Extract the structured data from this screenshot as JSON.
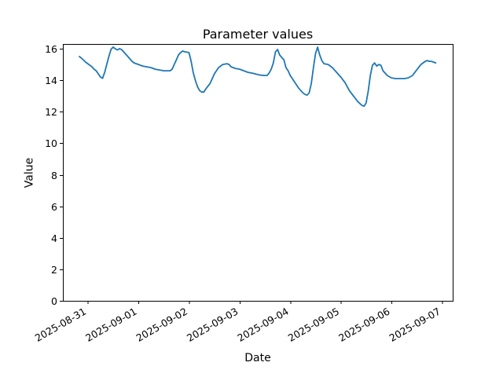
{
  "chart_data": {
    "type": "line",
    "title": "Parameter values",
    "xlabel": "Date",
    "ylabel": "Value",
    "line_color": "#1f77b4",
    "background": "#ffffff",
    "grid": false,
    "legend": "none",
    "ylim": [
      0,
      16.3
    ],
    "xlim": [
      "2025-08-30T12:10",
      "2025-09-07T05:10"
    ],
    "y_ticks": [
      0,
      2,
      4,
      6,
      8,
      10,
      12,
      14,
      16
    ],
    "x_tick_labels": [
      "2025-08-31",
      "2025-09-01",
      "2025-09-02",
      "2025-09-03",
      "2025-09-04",
      "2025-09-05",
      "2025-09-06",
      "2025-09-07"
    ],
    "x": [
      "2025-08-30T20:00",
      "2025-08-30T21:00",
      "2025-08-30T22:00",
      "2025-08-30T23:00",
      "2025-08-31T00:00",
      "2025-08-31T01:00",
      "2025-08-31T02:00",
      "2025-08-31T03:00",
      "2025-08-31T04:00",
      "2025-08-31T05:00",
      "2025-08-31T06:00",
      "2025-08-31T07:00",
      "2025-08-31T08:00",
      "2025-08-31T09:00",
      "2025-08-31T10:00",
      "2025-08-31T11:00",
      "2025-08-31T12:00",
      "2025-08-31T13:00",
      "2025-08-31T14:00",
      "2025-08-31T15:00",
      "2025-08-31T16:00",
      "2025-08-31T17:00",
      "2025-08-31T18:00",
      "2025-08-31T19:00",
      "2025-08-31T20:00",
      "2025-08-31T21:00",
      "2025-08-31T22:00",
      "2025-08-31T23:00",
      "2025-09-01T00:00",
      "2025-09-01T02:00",
      "2025-09-01T04:00",
      "2025-09-01T06:00",
      "2025-09-01T08:00",
      "2025-09-01T10:00",
      "2025-09-01T12:00",
      "2025-09-01T14:00",
      "2025-09-01T15:00",
      "2025-09-01T16:00",
      "2025-09-01T17:00",
      "2025-09-01T18:00",
      "2025-09-01T19:00",
      "2025-09-01T20:00",
      "2025-09-01T21:00",
      "2025-09-01T22:00",
      "2025-09-01T23:00",
      "2025-09-02T00:00",
      "2025-09-02T01:00",
      "2025-09-02T02:00",
      "2025-09-02T03:00",
      "2025-09-02T04:00",
      "2025-09-02T05:00",
      "2025-09-02T06:00",
      "2025-09-02T07:00",
      "2025-09-02T08:00",
      "2025-09-02T10:00",
      "2025-09-02T12:00",
      "2025-09-02T14:00",
      "2025-09-02T16:00",
      "2025-09-02T18:00",
      "2025-09-02T19:00",
      "2025-09-02T20:00",
      "2025-09-02T22:00",
      "2025-09-03T00:00",
      "2025-09-03T02:00",
      "2025-09-03T04:00",
      "2025-09-03T06:00",
      "2025-09-03T08:00",
      "2025-09-03T10:00",
      "2025-09-03T12:00",
      "2025-09-03T13:00",
      "2025-09-03T14:00",
      "2025-09-03T15:00",
      "2025-09-03T16:00",
      "2025-09-03T17:00",
      "2025-09-03T18:00",
      "2025-09-03T19:00",
      "2025-09-03T20:00",
      "2025-09-03T21:00",
      "2025-09-03T22:00",
      "2025-09-03T23:00",
      "2025-09-04T00:00",
      "2025-09-04T02:00",
      "2025-09-04T04:00",
      "2025-09-04T06:00",
      "2025-09-04T07:00",
      "2025-09-04T08:00",
      "2025-09-04T09:00",
      "2025-09-04T10:00",
      "2025-09-04T11:00",
      "2025-09-04T12:00",
      "2025-09-04T13:00",
      "2025-09-04T14:00",
      "2025-09-04T15:00",
      "2025-09-04T16:00",
      "2025-09-04T18:00",
      "2025-09-04T20:00",
      "2025-09-04T22:00",
      "2025-09-05T00:00",
      "2025-09-05T02:00",
      "2025-09-05T04:00",
      "2025-09-05T06:00",
      "2025-09-05T08:00",
      "2025-09-05T10:00",
      "2025-09-05T11:00",
      "2025-09-05T12:00",
      "2025-09-05T13:00",
      "2025-09-05T14:00",
      "2025-09-05T15:00",
      "2025-09-05T16:00",
      "2025-09-05T17:00",
      "2025-09-05T18:00",
      "2025-09-05T19:00",
      "2025-09-05T20:00",
      "2025-09-05T22:00",
      "2025-09-06T00:00",
      "2025-09-06T02:00",
      "2025-09-06T04:00",
      "2025-09-06T06:00",
      "2025-09-06T08:00",
      "2025-09-06T10:00",
      "2025-09-06T12:00",
      "2025-09-06T14:00",
      "2025-09-06T15:00",
      "2025-09-06T16:00",
      "2025-09-06T17:00",
      "2025-09-06T18:00",
      "2025-09-06T19:00",
      "2025-09-06T20:00",
      "2025-09-06T21:00"
    ],
    "values": [
      15.5,
      15.4,
      15.28,
      15.15,
      15.05,
      14.95,
      14.85,
      14.7,
      14.6,
      14.4,
      14.2,
      14.12,
      14.5,
      15.0,
      15.5,
      15.95,
      16.1,
      16.0,
      15.92,
      16.0,
      15.95,
      15.8,
      15.65,
      15.5,
      15.35,
      15.2,
      15.1,
      15.05,
      15.0,
      14.9,
      14.85,
      14.8,
      14.7,
      14.65,
      14.6,
      14.6,
      14.6,
      14.7,
      15.0,
      15.3,
      15.6,
      15.75,
      15.85,
      15.8,
      15.78,
      15.75,
      15.2,
      14.5,
      14.0,
      13.6,
      13.35,
      13.25,
      13.25,
      13.45,
      13.8,
      14.4,
      14.8,
      15.0,
      15.05,
      15.0,
      14.85,
      14.75,
      14.7,
      14.6,
      14.5,
      14.45,
      14.38,
      14.32,
      14.3,
      14.3,
      14.45,
      14.7,
      15.1,
      15.8,
      15.95,
      15.6,
      15.45,
      15.3,
      14.8,
      14.6,
      14.3,
      13.9,
      13.5,
      13.2,
      13.1,
      13.05,
      13.2,
      13.8,
      14.8,
      15.7,
      16.1,
      15.6,
      15.25,
      15.05,
      15.0,
      14.8,
      14.5,
      14.2,
      13.85,
      13.35,
      13.0,
      12.65,
      12.4,
      12.35,
      12.55,
      13.3,
      14.3,
      14.95,
      15.1,
      14.9,
      15.0,
      14.95,
      14.6,
      14.3,
      14.15,
      14.1,
      14.1,
      14.1,
      14.15,
      14.3,
      14.65,
      15.0,
      15.1,
      15.2,
      15.25,
      15.2,
      15.2,
      15.15,
      15.1
    ]
  }
}
